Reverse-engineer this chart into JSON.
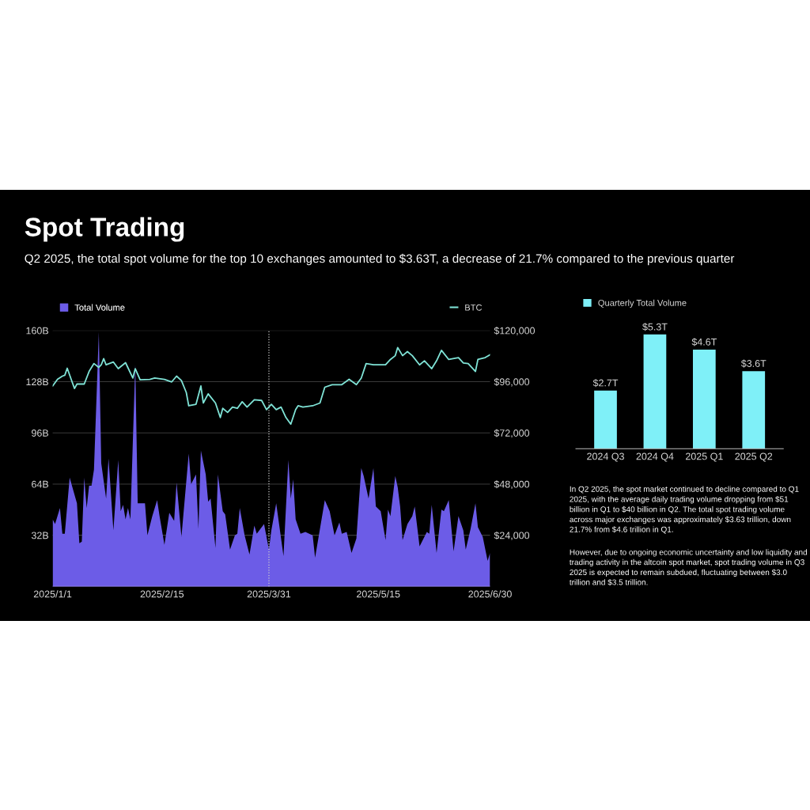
{
  "chart_data": [
    {
      "type": "area",
      "title": "Spot Trading",
      "subtitle": "Q2 2025, the total spot volume for the top 10 exchanges amounted to $3.63T, a decrease of 21.7% compared to the previous quarter",
      "series": [
        {
          "name": "Total Volume",
          "color": "#6c5ce7",
          "type": "area",
          "x": [
            "2025-01-01",
            "2025-01-02",
            "2025-01-04",
            "2025-01-05",
            "2025-01-06",
            "2025-01-08",
            "2025-01-11",
            "2025-01-12",
            "2025-01-13",
            "2025-01-14",
            "2025-01-15",
            "2025-01-16",
            "2025-01-17",
            "2025-01-18",
            "2025-01-20",
            "2025-01-21",
            "2025-01-23",
            "2025-01-24",
            "2025-01-26",
            "2025-01-28",
            "2025-01-29",
            "2025-01-30",
            "2025-01-31",
            "2025-02-01",
            "2025-02-02",
            "2025-02-04",
            "2025-02-05",
            "2025-02-08",
            "2025-02-09",
            "2025-02-11",
            "2025-02-13",
            "2025-02-14",
            "2025-02-16",
            "2025-02-18",
            "2025-02-20",
            "2025-02-21",
            "2025-02-23",
            "2025-02-26",
            "2025-02-27",
            "2025-03-01",
            "2025-03-02",
            "2025-03-03",
            "2025-03-05",
            "2025-03-06",
            "2025-03-07",
            "2025-03-09",
            "2025-03-10",
            "2025-03-12",
            "2025-03-13",
            "2025-03-15",
            "2025-03-17",
            "2025-03-18",
            "2025-03-19",
            "2025-03-21",
            "2025-03-23",
            "2025-03-25",
            "2025-03-26",
            "2025-03-29",
            "2025-03-31",
            "2025-04-01",
            "2025-04-03",
            "2025-04-04",
            "2025-04-06",
            "2025-04-08",
            "2025-04-09",
            "2025-04-10",
            "2025-04-11",
            "2025-04-13",
            "2025-04-15",
            "2025-04-18",
            "2025-04-19",
            "2025-04-23",
            "2025-04-25",
            "2025-04-27",
            "2025-04-29",
            "2025-04-30",
            "2025-05-02",
            "2025-05-04",
            "2025-05-06",
            "2025-05-08",
            "2025-05-09",
            "2025-05-11",
            "2025-05-13",
            "2025-05-14",
            "2025-05-16",
            "2025-05-18",
            "2025-05-19",
            "2025-05-20",
            "2025-05-22",
            "2025-05-23",
            "2025-05-24",
            "2025-05-25",
            "2025-05-27",
            "2025-05-29",
            "2025-05-30",
            "2025-06-01",
            "2025-06-04",
            "2025-06-05",
            "2025-06-06",
            "2025-06-08",
            "2025-06-10",
            "2025-06-11",
            "2025-06-13",
            "2025-06-15",
            "2025-06-17",
            "2025-06-19",
            "2025-06-20",
            "2025-06-22",
            "2025-06-24",
            "2025-06-25",
            "2025-06-27",
            "2025-06-29",
            "2025-06-30"
          ],
          "values": [
            42,
            39,
            49,
            33,
            33,
            68,
            52,
            27,
            28,
            68,
            49,
            63,
            63,
            73,
            159,
            77,
            55,
            80,
            35,
            79,
            47,
            51,
            42,
            49,
            42,
            139,
            52,
            52,
            32,
            44,
            54,
            44,
            26,
            46,
            41,
            65,
            31,
            83,
            64,
            70,
            36,
            85,
            70,
            53,
            55,
            24,
            70,
            47,
            45,
            23,
            32,
            33,
            49,
            32,
            20,
            38,
            33,
            39,
            23,
            35,
            52,
            41,
            19,
            79,
            55,
            67,
            42,
            33,
            34,
            32,
            18,
            54,
            47,
            32,
            40,
            33,
            34,
            21,
            30,
            74,
            69,
            55,
            74,
            50,
            47,
            29,
            48,
            44,
            69,
            62,
            50,
            29,
            39,
            44,
            50,
            25,
            34,
            33,
            51,
            21,
            48,
            47,
            54,
            22,
            44,
            35,
            23,
            36,
            52,
            37,
            31,
            16,
            21
          ]
        },
        {
          "name": "BTC",
          "color": "#7fe3d6",
          "type": "line",
          "axis": "y2",
          "x": [
            "2025-01-01",
            "2025-01-03",
            "2025-01-05",
            "2025-01-06",
            "2025-01-07",
            "2025-01-09",
            "2025-01-10",
            "2025-01-11",
            "2025-01-14",
            "2025-01-16",
            "2025-01-18",
            "2025-01-20",
            "2025-01-21",
            "2025-01-22",
            "2025-01-23",
            "2025-01-26",
            "2025-01-28",
            "2025-01-31",
            "2025-02-03",
            "2025-02-04",
            "2025-02-06",
            "2025-02-10",
            "2025-02-12",
            "2025-02-16",
            "2025-02-19",
            "2025-02-21",
            "2025-02-23",
            "2025-02-25",
            "2025-02-26",
            "2025-03-01",
            "2025-03-03",
            "2025-03-04",
            "2025-03-06",
            "2025-03-09",
            "2025-03-11",
            "2025-03-12",
            "2025-03-14",
            "2025-03-16",
            "2025-03-18",
            "2025-03-20",
            "2025-03-22",
            "2025-03-25",
            "2025-03-28",
            "2025-03-30",
            "2025-04-01",
            "2025-04-03",
            "2025-04-05",
            "2025-04-07",
            "2025-04-09",
            "2025-04-11",
            "2025-04-12",
            "2025-04-14",
            "2025-04-18",
            "2025-04-21",
            "2025-04-23",
            "2025-04-26",
            "2025-04-30",
            "2025-05-03",
            "2025-05-06",
            "2025-05-08",
            "2025-05-10",
            "2025-05-13",
            "2025-05-18",
            "2025-05-20",
            "2025-05-22",
            "2025-05-23",
            "2025-05-25",
            "2025-05-27",
            "2025-05-29",
            "2025-06-01",
            "2025-06-03",
            "2025-06-06",
            "2025-06-08",
            "2025-06-10",
            "2025-06-13",
            "2025-06-17",
            "2025-06-19",
            "2025-06-21",
            "2025-06-24",
            "2025-06-25",
            "2025-06-28",
            "2025-06-30"
          ],
          "values": [
            94000,
            97100,
            98600,
            99000,
            102300,
            95900,
            92800,
            94900,
            94900,
            100800,
            104500,
            102700,
            103900,
            106800,
            103900,
            105200,
            102100,
            104900,
            97700,
            102100,
            96900,
            97100,
            97700,
            97100,
            95900,
            98600,
            96500,
            90900,
            84700,
            85400,
            94000,
            86000,
            90300,
            86000,
            79200,
            83500,
            81600,
            84100,
            83500,
            86600,
            84100,
            87500,
            87200,
            82900,
            85400,
            82900,
            84100,
            79200,
            76100,
            82900,
            84700,
            84100,
            84700,
            86000,
            93400,
            94600,
            94600,
            97100,
            94600,
            97700,
            104500,
            103900,
            103900,
            106400,
            108200,
            112000,
            108200,
            110100,
            108200,
            103900,
            105800,
            102100,
            105800,
            110700,
            106400,
            107300,
            104800,
            104500,
            100800,
            106400,
            107300,
            108600
          ]
        }
      ],
      "xlim": [
        "2025-01-01",
        "2025-06-30"
      ],
      "xticks": [
        {
          "value": "2025-01-01",
          "label": "2025/1/1"
        },
        {
          "value": "2025-02-15",
          "label": "2025/2/15"
        },
        {
          "value": "2025-03-31",
          "label": "2025/3/31"
        },
        {
          "value": "2025-05-15",
          "label": "2025/5/15"
        },
        {
          "value": "2025-06-30",
          "label": "2025/6/30"
        }
      ],
      "ylim": [
        0,
        160
      ],
      "yticks": [
        {
          "value": 32,
          "label": "32B"
        },
        {
          "value": 64,
          "label": "64B"
        },
        {
          "value": 96,
          "label": "96B"
        },
        {
          "value": 128,
          "label": "128B"
        },
        {
          "value": 160,
          "label": "160B"
        }
      ],
      "y2lim": [
        0,
        120000
      ],
      "y2ticks": [
        {
          "value": 24000,
          "label": "$24,000"
        },
        {
          "value": 48000,
          "label": "$48,000"
        },
        {
          "value": 72000,
          "label": "$72,000"
        },
        {
          "value": 96000,
          "label": "$96,000"
        },
        {
          "value": 120000,
          "label": "$120,000"
        }
      ],
      "ref_lines": [
        {
          "axis": "x",
          "value": "2025-03-31",
          "color": "#cccccc",
          "line_style": "dotted"
        }
      ],
      "grid": "y",
      "legend": "top"
    },
    {
      "type": "bar",
      "categories": [
        "2024 Q3",
        "2024 Q4",
        "2025 Q1",
        "2025 Q2"
      ],
      "series": [
        {
          "name": "Quarterly Total Volume",
          "color": "#7ff0f8",
          "values": [
            2.7,
            5.3,
            4.6,
            3.6
          ],
          "value_labels": [
            "$2.7T",
            "$5.3T",
            "$4.6T",
            "$3.6T"
          ]
        }
      ],
      "tick_labels": "x",
      "legend": "top left",
      "annotations": [
        "In Q2 2025, the spot market continued to decline compared to Q1 2025, with the average daily trading volume dropping from $51 billion in Q1 to $40 billion in Q2. The total spot trading volume across major exchanges was approximately $3.63 trillion, down 21.7% from $4.6 trillion in Q1.",
        "However, due to ongoing economic uncertainty and low liquidity and trading activity in the altcoin spot market, spot trading volume in Q3 2025 is expected to remain subdued, fluctuating between $3.0 trillion and $3.5 trillion."
      ]
    }
  ]
}
